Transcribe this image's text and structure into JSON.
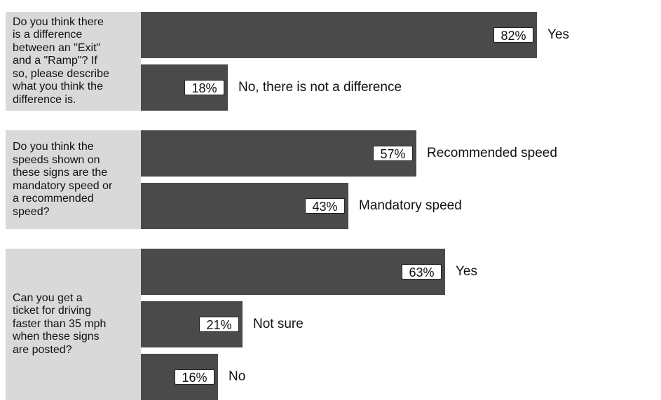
{
  "chart_data": {
    "type": "bar",
    "groups": [
      {
        "question": "Do you think there is a difference between an \"Exit\" and a \"Ramp\"? If so, please describe what you think the difference is.",
        "question_lines": "Do you think there\nis a difference\nbetween an \"Exit\"\nand a \"Ramp\"? If\nso, please describe\nwhat you think the\ndifference is.",
        "bars": [
          {
            "label": "Yes",
            "value": 82,
            "value_label": "82%"
          },
          {
            "label": "No, there is not a difference",
            "value": 18,
            "value_label": "18%"
          }
        ]
      },
      {
        "question": "Do you think the speeds shown on these signs are the mandatory speed or a recommended speed?",
        "question_lines": "Do you think the\nspeeds shown on\nthese signs are the\nmandatory speed or\na recommended\nspeed?",
        "bars": [
          {
            "label": "Recommended speed",
            "value": 57,
            "value_label": "57%"
          },
          {
            "label": "Mandatory speed",
            "value": 43,
            "value_label": "43%"
          }
        ]
      },
      {
        "question": "Can you get a ticket for driving faster than 35 mph when these signs are posted?",
        "question_lines": "Can you get a\nticket for driving\nfaster than 35 mph\nwhen these signs\nare posted?",
        "bars": [
          {
            "label": "Yes",
            "value": 63,
            "value_label": "63%"
          },
          {
            "label": "Not sure",
            "value": 21,
            "value_label": "21%"
          },
          {
            "label": "No",
            "value": 16,
            "value_label": "16%"
          }
        ]
      }
    ],
    "xlim": [
      0,
      100
    ],
    "colors": {
      "bar": "#4a4a4a",
      "question_bg": "#d9d9d9"
    }
  }
}
